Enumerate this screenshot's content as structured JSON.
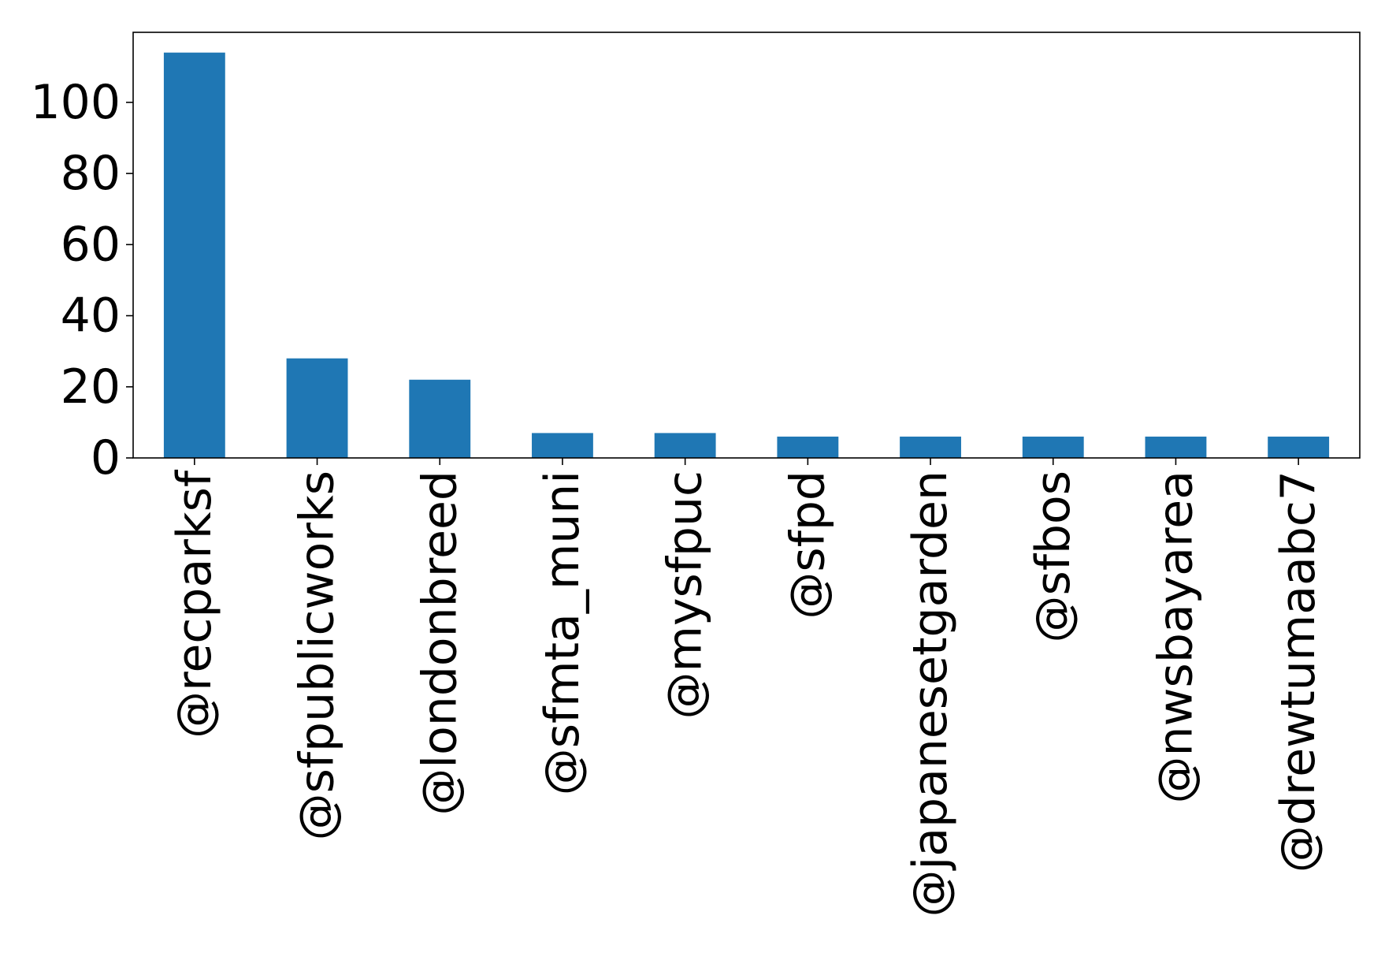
{
  "chart_data": {
    "type": "bar",
    "title": "",
    "xlabel": "",
    "ylabel": "",
    "categories": [
      "@recparksf",
      "@sfpublicworks",
      "@londonbreed",
      "@sfmta_muni",
      "@mysfpuc",
      "@sfpd",
      "@japanesetgarden",
      "@sfbos",
      "@nwsbayarea",
      "@drewtumaabc7"
    ],
    "values": [
      114,
      28,
      22,
      7,
      7,
      6,
      6,
      6,
      6,
      6
    ],
    "ylim": [
      0,
      119.7
    ],
    "yticks": [
      0,
      20,
      40,
      60,
      80,
      100
    ],
    "bar_color": "#1f77b4",
    "grid": false,
    "legend": "none"
  }
}
